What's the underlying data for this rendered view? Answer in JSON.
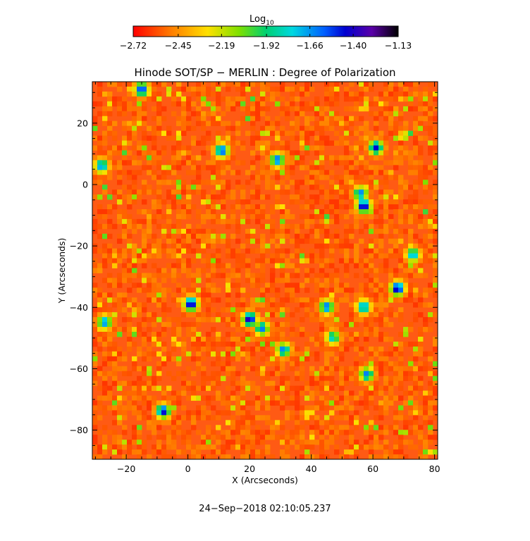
{
  "chart_data": {
    "type": "heatmap",
    "title": "Hinode SOT/SP − MERLIN : Degree of Polarization",
    "xlabel": "X (Arcseconds)",
    "ylabel": "Y (Arcseconds)",
    "xlim": [
      -31,
      81
    ],
    "ylim": [
      -89.5,
      33.5
    ],
    "x_ticks": [
      -20,
      0,
      20,
      40,
      60,
      80
    ],
    "x_tick_labels": [
      "−20",
      "0",
      "20",
      "40",
      "60",
      "80"
    ],
    "y_ticks": [
      20,
      0,
      -20,
      -40,
      -60,
      -80
    ],
    "y_tick_labels": [
      "20",
      "0",
      "−20",
      "−40",
      "−60",
      "−80"
    ],
    "colorbar": {
      "title_main": "Log",
      "title_sub": "10",
      "range": [
        -2.72,
        -1.13
      ],
      "ticks": [
        -2.72,
        -2.45,
        -2.19,
        -1.92,
        -1.66,
        -1.4,
        -1.13
      ],
      "tick_labels": [
        "−2.72",
        "−2.45",
        "−2.19",
        "−1.92",
        "−1.66",
        "−1.40",
        "−1.13"
      ],
      "colormap": "rainbow reversed: red → orange → yellow → green → cyan → blue → violet → black"
    },
    "background_level": -2.6,
    "features": [
      {
        "x": -15,
        "y": 31,
        "level": -1.45
      },
      {
        "x": 11,
        "y": 11,
        "level": -1.5
      },
      {
        "x": 29,
        "y": 8,
        "level": -1.55
      },
      {
        "x": -28,
        "y": 6,
        "level": -1.6
      },
      {
        "x": 61,
        "y": 12,
        "level": -1.45
      },
      {
        "x": 57,
        "y": -7,
        "level": -1.3
      },
      {
        "x": 56,
        "y": -3,
        "level": -1.6
      },
      {
        "x": 68,
        "y": -34,
        "level": -1.3
      },
      {
        "x": 1,
        "y": -39,
        "level": -1.3
      },
      {
        "x": 20,
        "y": -44,
        "level": -1.3
      },
      {
        "x": 24,
        "y": -47,
        "level": -1.6
      },
      {
        "x": 45,
        "y": -40,
        "level": -1.55
      },
      {
        "x": 57,
        "y": -40,
        "level": -1.6
      },
      {
        "x": 31,
        "y": -54,
        "level": -1.6
      },
      {
        "x": -8,
        "y": -74,
        "level": -1.4
      },
      {
        "x": 58,
        "y": -62,
        "level": -1.6
      },
      {
        "x": -27,
        "y": -45,
        "level": -1.6
      },
      {
        "x": 73,
        "y": -23,
        "level": -1.65
      },
      {
        "x": 47,
        "y": -50,
        "level": -1.75
      }
    ]
  },
  "footer": {
    "timestamp": "24−Sep−2018 02:10:05.237"
  }
}
